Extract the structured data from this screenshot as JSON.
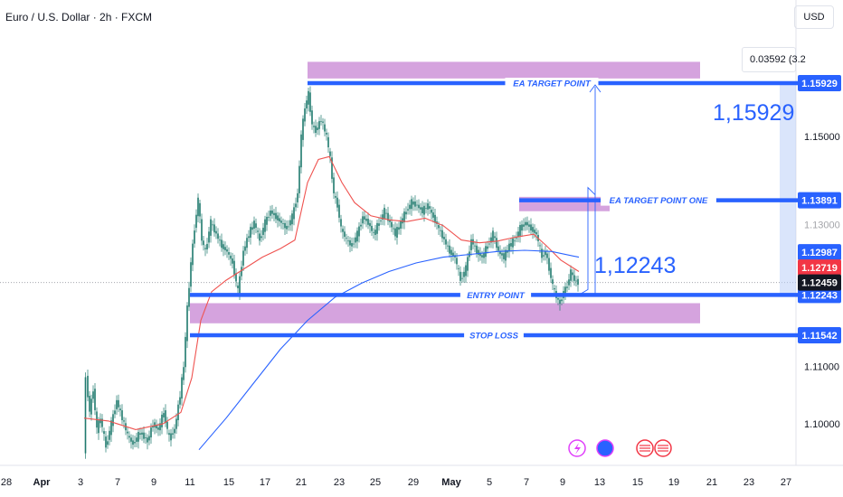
{
  "header": {
    "symbol_title": "Euro / U.S. Dollar · 2h · FXCM",
    "currency_button": "USD"
  },
  "measure_tooltip": "0.03592 (3.2",
  "colors": {
    "candle": "#1f7a6e",
    "ema_fast": "#ef5350",
    "ema_slow": "#2962ff",
    "level_line": "#2962ff",
    "zone": "#ce93d8",
    "last_price_tag": "#f23645"
  },
  "chart_data": {
    "type": "candlestick",
    "title": "Euro / U.S. Dollar · 2h · FXCM",
    "price_axis": {
      "min": 1.095,
      "max": 1.171,
      "ticks": [
        "1.15000",
        "1.11000",
        "1.10000"
      ],
      "faded_tick": "1.13000"
    },
    "time_axis": {
      "labels": [
        "28",
        "Apr",
        "3",
        "7",
        "9",
        "11",
        "15",
        "17",
        "21",
        "23",
        "25",
        "29",
        "May",
        "5",
        "7",
        "9",
        "13",
        "15",
        "19",
        "21",
        "23",
        "27"
      ],
      "bold": [
        "Apr",
        "May"
      ]
    },
    "price_path": [
      [
        93,
        1.095
      ],
      [
        96,
        1.108
      ],
      [
        100,
        1.102
      ],
      [
        104,
        1.106
      ],
      [
        108,
        1.099
      ],
      [
        112,
        1.101
      ],
      [
        118,
        1.096
      ],
      [
        124,
        1.1
      ],
      [
        130,
        1.104
      ],
      [
        136,
        1.101
      ],
      [
        142,
        1.098
      ],
      [
        148,
        1.0965
      ],
      [
        156,
        1.0985
      ],
      [
        164,
        1.097
      ],
      [
        170,
        1.1
      ],
      [
        176,
        1.099
      ],
      [
        182,
        1.102
      ],
      [
        188,
        1.0975
      ],
      [
        194,
        1.099
      ],
      [
        200,
        1.105
      ],
      [
        204,
        1.11
      ],
      [
        208,
        1.12
      ],
      [
        212,
        1.128
      ],
      [
        216,
        1.134
      ],
      [
        220,
        1.139
      ],
      [
        224,
        1.132
      ],
      [
        228,
        1.13
      ],
      [
        234,
        1.135
      ],
      [
        240,
        1.133
      ],
      [
        246,
        1.131
      ],
      [
        252,
        1.13
      ],
      [
        258,
        1.128
      ],
      [
        264,
        1.123
      ],
      [
        270,
        1.13
      ],
      [
        276,
        1.133
      ],
      [
        282,
        1.135
      ],
      [
        288,
        1.132
      ],
      [
        294,
        1.135
      ],
      [
        300,
        1.137
      ],
      [
        306,
        1.136
      ],
      [
        312,
        1.135
      ],
      [
        318,
        1.134
      ],
      [
        324,
        1.136
      ],
      [
        330,
        1.14
      ],
      [
        334,
        1.15
      ],
      [
        338,
        1.155
      ],
      [
        342,
        1.1573
      ],
      [
        346,
        1.152
      ],
      [
        350,
        1.151
      ],
      [
        356,
        1.153
      ],
      [
        362,
        1.15
      ],
      [
        366,
        1.146
      ],
      [
        370,
        1.14
      ],
      [
        374,
        1.138
      ],
      [
        378,
        1.134
      ],
      [
        384,
        1.132
      ],
      [
        390,
        1.131
      ],
      [
        396,
        1.133
      ],
      [
        402,
        1.136
      ],
      [
        408,
        1.135
      ],
      [
        414,
        1.133
      ],
      [
        420,
        1.135
      ],
      [
        426,
        1.137
      ],
      [
        432,
        1.135
      ],
      [
        438,
        1.133
      ],
      [
        444,
        1.135
      ],
      [
        450,
        1.137
      ],
      [
        456,
        1.1385
      ],
      [
        462,
        1.138
      ],
      [
        468,
        1.137
      ],
      [
        474,
        1.138
      ],
      [
        480,
        1.136
      ],
      [
        486,
        1.134
      ],
      [
        492,
        1.132
      ],
      [
        498,
        1.13
      ],
      [
        504,
        1.129
      ],
      [
        510,
        1.125
      ],
      [
        516,
        1.127
      ],
      [
        522,
        1.132
      ],
      [
        528,
        1.13
      ],
      [
        534,
        1.129
      ],
      [
        540,
        1.131
      ],
      [
        546,
        1.133
      ],
      [
        552,
        1.13
      ],
      [
        558,
        1.129
      ],
      [
        564,
        1.131
      ],
      [
        570,
        1.132
      ],
      [
        576,
        1.134
      ],
      [
        582,
        1.135
      ],
      [
        588,
        1.134
      ],
      [
        594,
        1.133
      ],
      [
        600,
        1.129
      ],
      [
        604,
        1.13
      ],
      [
        608,
        1.127
      ],
      [
        612,
        1.124
      ],
      [
        616,
        1.122
      ],
      [
        620,
        1.121
      ],
      [
        624,
        1.123
      ],
      [
        628,
        1.124
      ],
      [
        632,
        1.1265
      ],
      [
        636,
        1.125
      ],
      [
        640,
        1.1246
      ]
    ],
    "ema_fast": [
      [
        93,
        1.101
      ],
      [
        120,
        1.1005
      ],
      [
        150,
        1.099
      ],
      [
        180,
        1.1
      ],
      [
        200,
        1.102
      ],
      [
        212,
        1.108
      ],
      [
        222,
        1.118
      ],
      [
        234,
        1.123
      ],
      [
        250,
        1.125
      ],
      [
        270,
        1.127
      ],
      [
        290,
        1.129
      ],
      [
        310,
        1.1305
      ],
      [
        326,
        1.132
      ],
      [
        340,
        1.142
      ],
      [
        352,
        1.146
      ],
      [
        364,
        1.1465
      ],
      [
        378,
        1.142
      ],
      [
        392,
        1.1385
      ],
      [
        410,
        1.1362
      ],
      [
        430,
        1.1355
      ],
      [
        450,
        1.1352
      ],
      [
        470,
        1.1358
      ],
      [
        490,
        1.1345
      ],
      [
        510,
        1.132
      ],
      [
        530,
        1.1315
      ],
      [
        550,
        1.1318
      ],
      [
        570,
        1.1325
      ],
      [
        590,
        1.133
      ],
      [
        604,
        1.131
      ],
      [
        620,
        1.1285
      ],
      [
        640,
        1.1265
      ]
    ],
    "ema_slow": [
      [
        220,
        1.0955
      ],
      [
        250,
        1.101
      ],
      [
        280,
        1.107
      ],
      [
        310,
        1.113
      ],
      [
        340,
        1.118
      ],
      [
        370,
        1.122
      ],
      [
        400,
        1.1245
      ],
      [
        430,
        1.1265
      ],
      [
        460,
        1.128
      ],
      [
        490,
        1.129
      ],
      [
        520,
        1.1295
      ],
      [
        550,
        1.13
      ],
      [
        580,
        1.1302
      ],
      [
        610,
        1.13
      ],
      [
        640,
        1.129
      ]
    ],
    "levels": [
      {
        "name": "EA TARGET POINT",
        "price": 1.15929,
        "tag": "1.15929"
      },
      {
        "name": "EA TARGET POINT ONE",
        "price": 1.13891,
        "tag": "1.13891"
      },
      {
        "name": "ENTRY POINT",
        "price": 1.12243,
        "tag": "1.12243"
      },
      {
        "name": "STOP LOSS",
        "price": 1.11542,
        "tag": "1.11542"
      }
    ],
    "price_tags": [
      {
        "label": "1.12987",
        "price": 1.12987,
        "kind": "blue"
      },
      {
        "label": "1.12719",
        "price": 1.12719,
        "kind": "red"
      },
      {
        "label": "1.12459",
        "price": 1.12459,
        "kind": "dark"
      }
    ],
    "zones": [
      {
        "top": 1.163,
        "bottom": 1.1601
      },
      {
        "top": 1.1395,
        "bottom": 1.137
      },
      {
        "top": 1.121,
        "bottom": 1.1175
      }
    ],
    "annotations": [
      {
        "text": "1,15929",
        "price": 1.15929
      },
      {
        "text": "1,12243",
        "price": 1.12243
      }
    ]
  }
}
